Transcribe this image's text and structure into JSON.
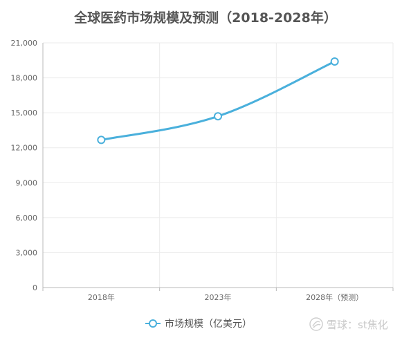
{
  "chart_data": {
    "type": "line",
    "title": "全球医药市场规模及预测（2018-2028年）",
    "categories": [
      "2018年",
      "2023年",
      "2028年（预测）"
    ],
    "series": [
      {
        "name": "市场规模（亿美元）",
        "values": [
          12670,
          14700,
          19400
        ],
        "color": "#4ab0dc"
      }
    ],
    "ylim": [
      0,
      21000
    ],
    "yticks": [
      "0",
      "3,000",
      "6,000",
      "9,000",
      "12,000",
      "15,000",
      "18,000",
      "21,000"
    ],
    "ytick_values": [
      0,
      3000,
      6000,
      9000,
      12000,
      15000,
      18000,
      21000
    ],
    "grid": true,
    "legend_position": "bottom",
    "smooth": true
  },
  "watermark": {
    "text": "雪球：st焦化"
  }
}
